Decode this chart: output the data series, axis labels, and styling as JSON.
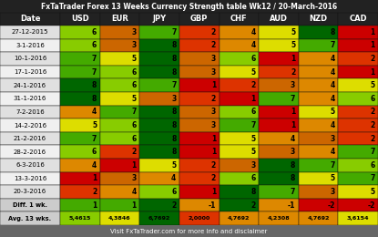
{
  "title": "FxTaTrader Forex 13 Weeks Currency Strength table Wk12 / 20-March-2016",
  "footer": "Visit FxTaTrader.com for more info and disclaimer",
  "columns": [
    "Date",
    "USD",
    "EUR",
    "JPY",
    "GBP",
    "CHF",
    "AUD",
    "NZD",
    "CAD"
  ],
  "rows": [
    [
      "27-12-2015",
      6,
      3,
      7,
      2,
      4,
      5,
      8,
      1
    ],
    [
      "3-1-2016",
      6,
      3,
      8,
      2,
      4,
      5,
      7,
      1
    ],
    [
      "10-1-2016",
      7,
      5,
      8,
      3,
      6,
      1,
      4,
      2
    ],
    [
      "17-1-2016",
      7,
      6,
      8,
      3,
      5,
      2,
      4,
      1
    ],
    [
      "24-1-2016",
      8,
      6,
      7,
      1,
      2,
      3,
      4,
      5
    ],
    [
      "31-1-2016",
      8,
      5,
      3,
      2,
      1,
      7,
      4,
      6
    ],
    [
      "7-2-2016",
      4,
      7,
      8,
      3,
      6,
      1,
      5,
      2
    ],
    [
      "14-2-2016",
      5,
      6,
      8,
      3,
      7,
      1,
      4,
      2
    ],
    [
      "21-2-2016",
      7,
      6,
      8,
      1,
      5,
      4,
      3,
      2
    ],
    [
      "28-2-2016",
      6,
      2,
      8,
      1,
      5,
      3,
      4,
      7
    ],
    [
      "6-3-2016",
      4,
      1,
      5,
      2,
      3,
      8,
      7,
      6
    ],
    [
      "13-3-2016",
      1,
      3,
      4,
      2,
      6,
      8,
      5,
      7
    ],
    [
      "20-3-2016",
      2,
      4,
      6,
      1,
      8,
      7,
      3,
      5
    ]
  ],
  "diff_row": [
    "Diff. 1 wk.",
    1,
    1,
    2,
    -1,
    2,
    -1,
    -2,
    -2
  ],
  "avg_row": [
    "Avg. 13 wks.",
    "5,4615",
    "4,3846",
    "6,7692",
    "2,0000",
    "4,7692",
    "4,2308",
    "4,7692",
    "3,6154"
  ],
  "color_map": {
    "1": "#cc0000",
    "2": "#dd3300",
    "3": "#cc6600",
    "4": "#dd8800",
    "5": "#dddd00",
    "6": "#88cc00",
    "7": "#44aa00",
    "8": "#006600"
  },
  "diff_colors": {
    "2": "#006600",
    "1": "#44aa00",
    "0": "#dddd00",
    "-1": "#dd8800",
    "-2": "#cc0000"
  },
  "avg_colors": {
    "USD": "#88cc00",
    "EUR": "#dddd00",
    "JPY": "#006600",
    "GBP": "#dd3300",
    "CHF": "#dd8800",
    "AUD": "#dd8800",
    "NZD": "#dd8800",
    "CAD": "#dddd00"
  },
  "header_bg": "#222222",
  "header_fg": "#ffffff",
  "title_bg": "#222222",
  "title_fg": "#ffffff",
  "footer_bg": "#666666",
  "footer_fg": "#ffffff",
  "date_col_bg": "#cccccc",
  "diff_label_bg": "#cccccc",
  "avg_label_bg": "#cccccc",
  "row_bg_even": "#e0e0e0",
  "row_bg_odd": "#f0f0f0"
}
